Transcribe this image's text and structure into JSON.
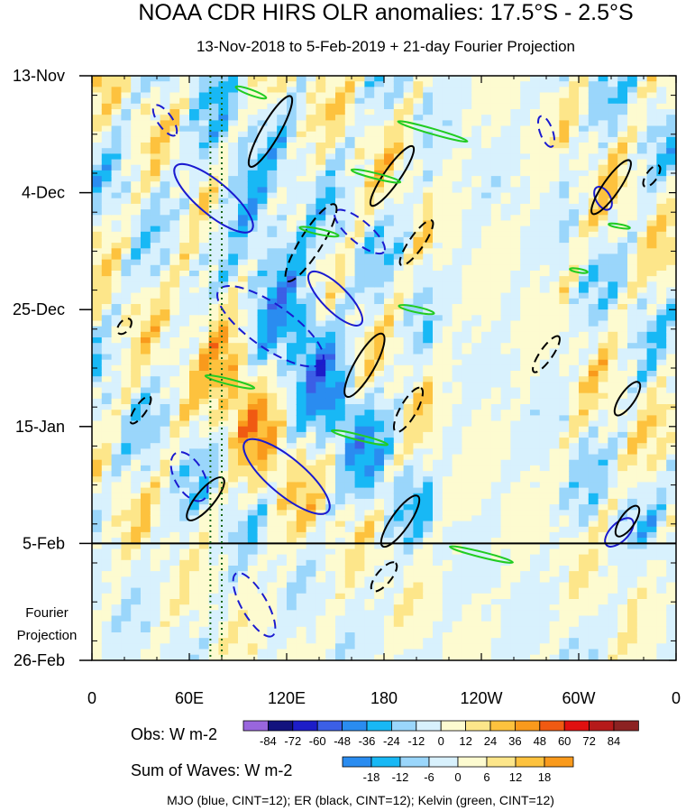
{
  "chart_data": {
    "type": "heatmap",
    "title": "NOAA CDR HIRS OLR anomalies: 17.5°S - 2.5°S",
    "subtitle": "13-Nov-2018 to 5-Feb-2019 + 21-day Fourier Projection",
    "x_axis": {
      "ticks": [
        "0",
        "60E",
        "120E",
        "180",
        "120W",
        "60W",
        "0"
      ],
      "tick_longitudes_deg": [
        0,
        60,
        120,
        180,
        240,
        300,
        360
      ]
    },
    "y_axis": {
      "ticks": [
        "13-Nov",
        "4-Dec",
        "25-Dec",
        "15-Jan",
        "5-Feb",
        "26-Feb"
      ],
      "tick_day_offsets": [
        0,
        21,
        42,
        63,
        84,
        105
      ],
      "reversed": true,
      "note_label": [
        "Fourier",
        "Projection"
      ]
    },
    "projection_start_label": "5-Feb",
    "reference_longitudes_deg": [
      73,
      80
    ],
    "obs_colorbar": {
      "label": "Obs: W m-2",
      "levels": [
        "-84",
        "-72",
        "-60",
        "-48",
        "-36",
        "-24",
        "-12",
        "0",
        "12",
        "24",
        "36",
        "48",
        "60",
        "72",
        "84"
      ],
      "colors": [
        "#9966dd",
        "#12127e",
        "#1d1dc8",
        "#3b5fe6",
        "#2a8cf0",
        "#18b8f5",
        "#9ad6fb",
        "#d8f1fd",
        "#fdfbd0",
        "#fde68a",
        "#fdc23e",
        "#f99a1c",
        "#f05a12",
        "#e01010",
        "#b51a1a",
        "#8c2222"
      ]
    },
    "waves_colorbar": {
      "label": "Sum of Waves: W m-2",
      "levels": [
        "-18",
        "-12",
        "-6",
        "0",
        "6",
        "12",
        "18"
      ],
      "colors": [
        "#2a8cf0",
        "#18b8f5",
        "#9ad6fb",
        "#d8f1fd",
        "#fdfbd0",
        "#fde68a",
        "#fdc23e",
        "#f99a1c"
      ]
    },
    "footer": "MJO (blue, CINT=12); ER (black, CINT=12); Kelvin (green, CINT=12)",
    "series": [
      {
        "name": "MJO",
        "color": "#1a1ad0"
      },
      {
        "name": "ER",
        "color": "#000000"
      },
      {
        "name": "Kelvin",
        "color": "#22cc22"
      }
    ]
  }
}
